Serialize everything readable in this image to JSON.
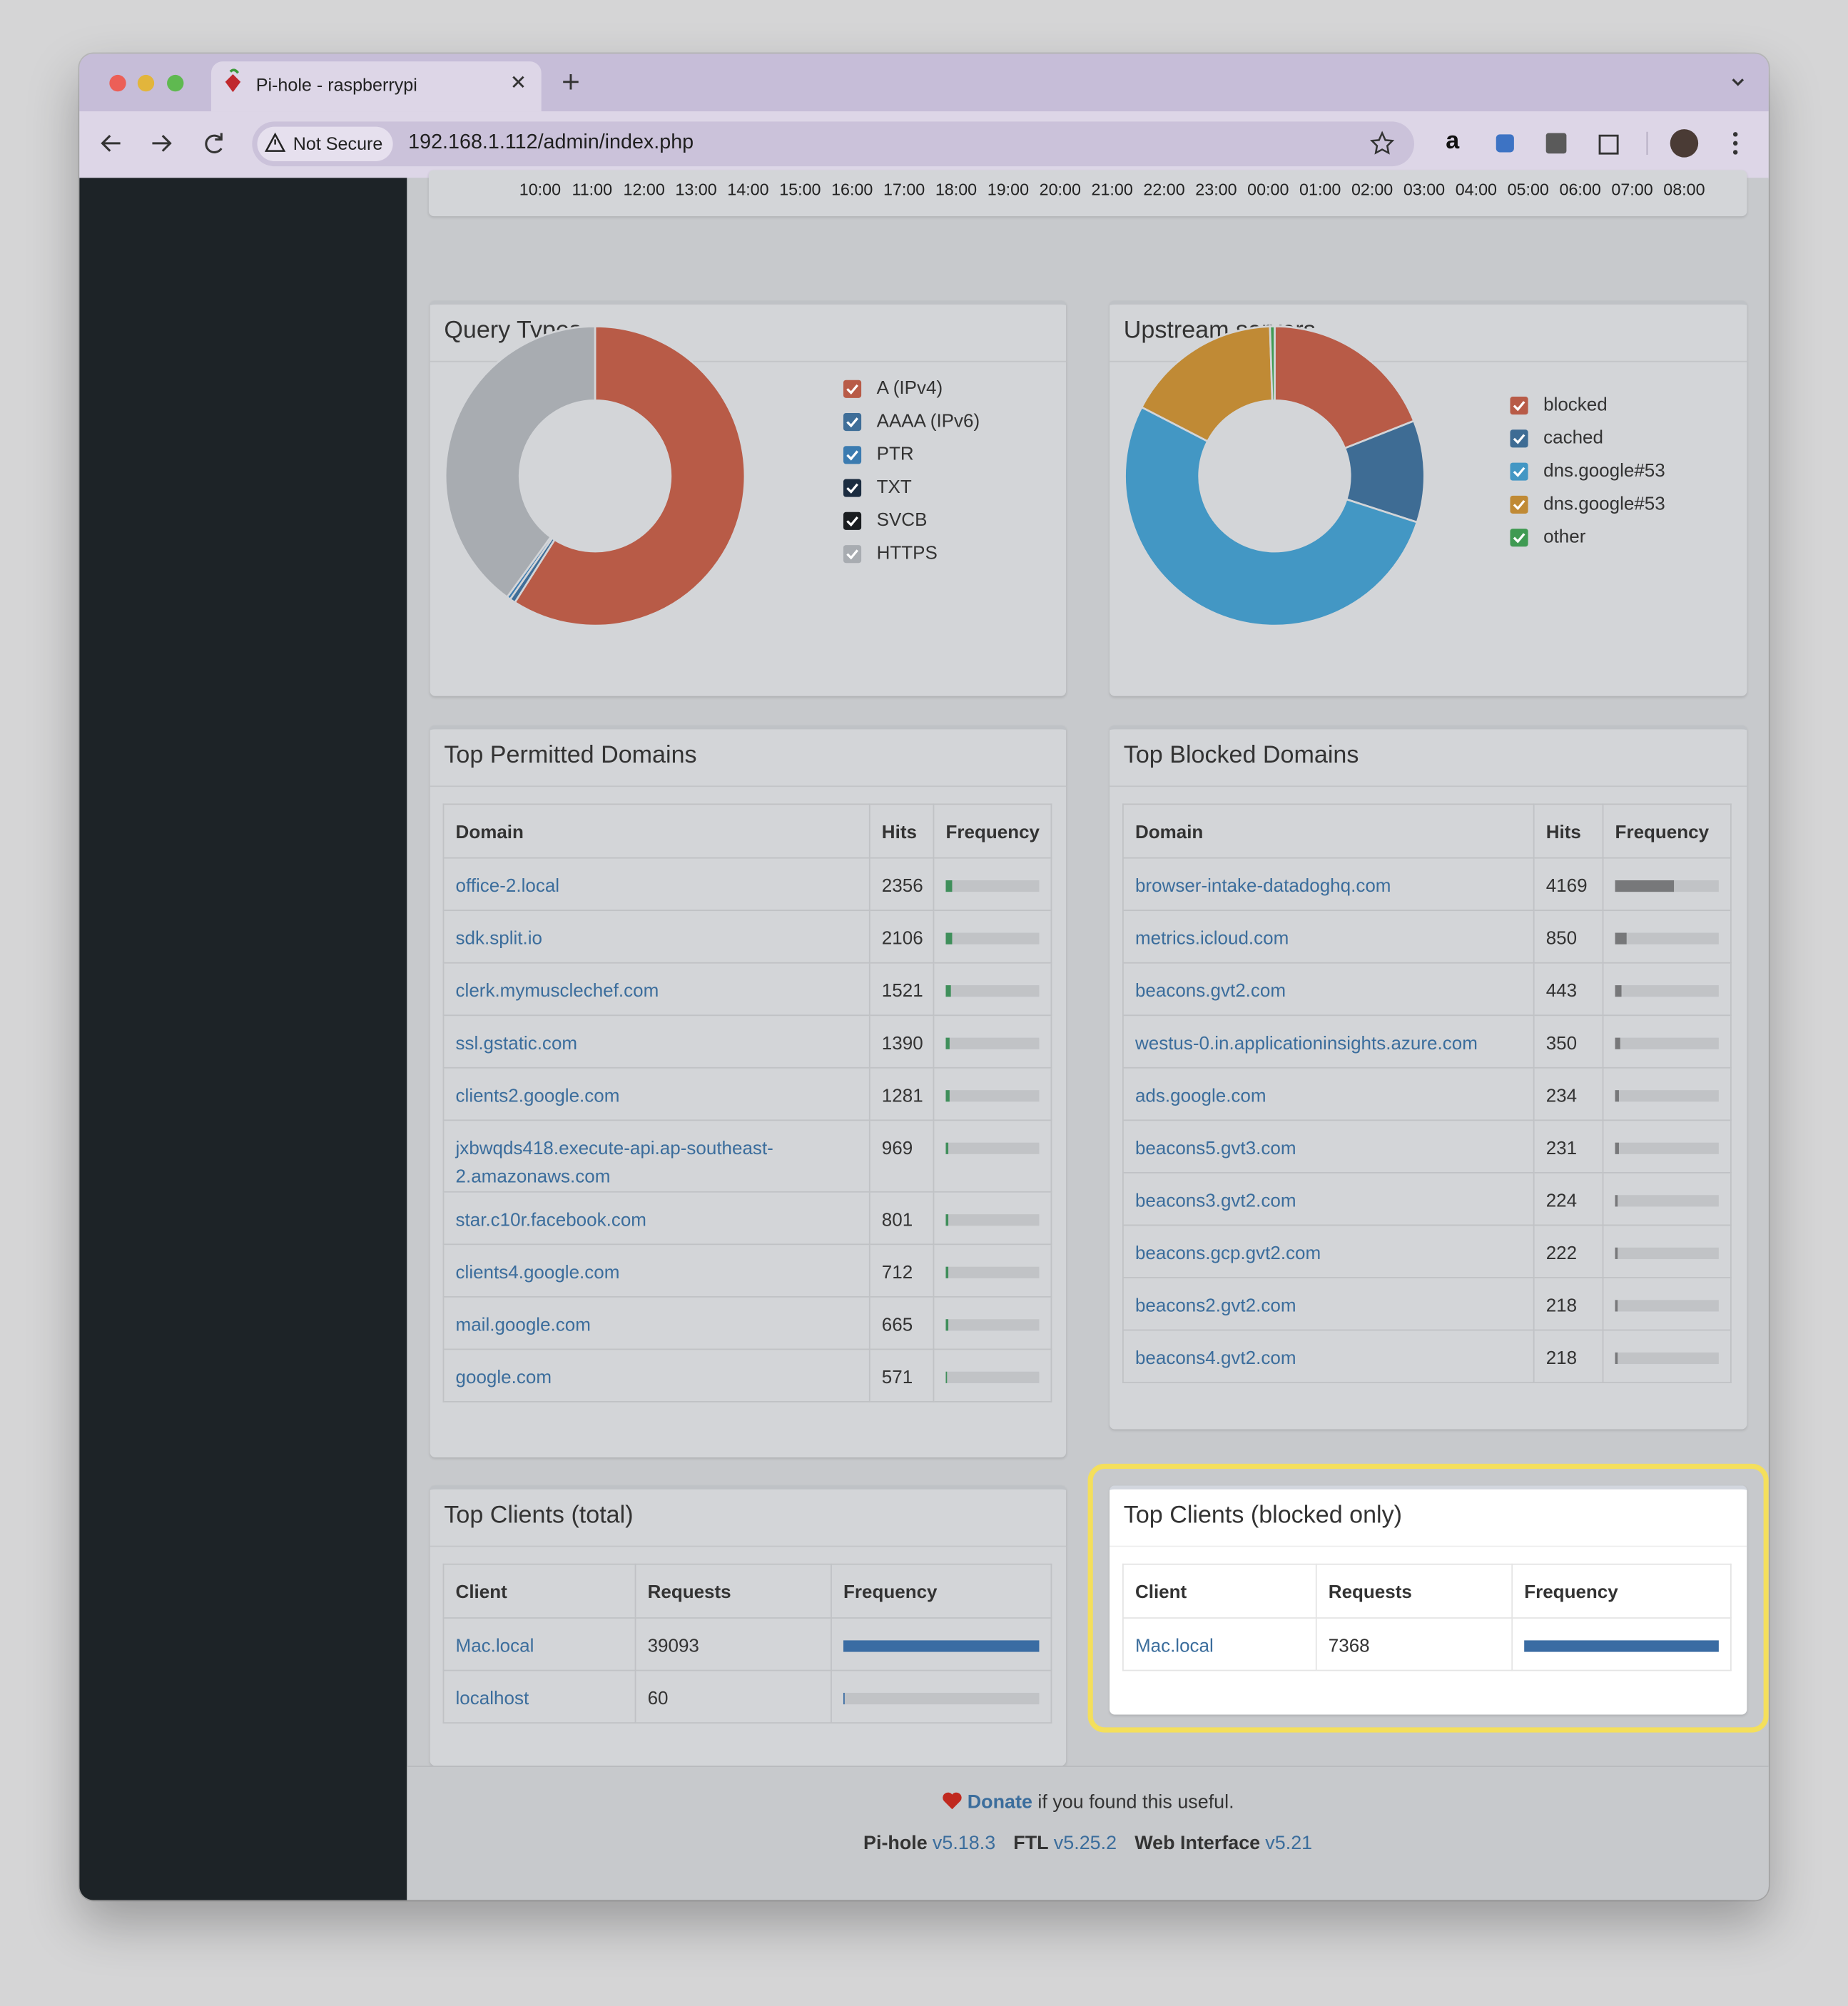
{
  "browser": {
    "tab_title": "Pi-hole - raspberrypi",
    "security": "Not Secure",
    "url": "192.168.1.112/admin/index.php"
  },
  "timeline": {
    "x_labels": [
      "10:00",
      "11:00",
      "12:00",
      "13:00",
      "14:00",
      "15:00",
      "16:00",
      "17:00",
      "18:00",
      "19:00",
      "20:00",
      "21:00",
      "22:00",
      "23:00",
      "00:00",
      "01:00",
      "02:00",
      "03:00",
      "04:00",
      "05:00",
      "06:00",
      "07:00",
      "08:00"
    ]
  },
  "query_types": {
    "title": "Query Types",
    "type": "donut",
    "series": [
      {
        "name": "A (IPv4)",
        "color": "#b85b47",
        "value": 59
      },
      {
        "name": "AAAA (IPv6)",
        "color": "#3f6e98",
        "value": 0.6
      },
      {
        "name": "PTR",
        "color": "#3b7bb0",
        "value": 0.4
      },
      {
        "name": "TXT",
        "color": "#1b2c40",
        "value": 0
      },
      {
        "name": "SVCB",
        "color": "#1a1d20",
        "value": 0
      },
      {
        "name": "HTTPS",
        "color": "#a8acb1",
        "value": 40
      }
    ]
  },
  "upstream_servers": {
    "title": "Upstream servers",
    "type": "donut",
    "series": [
      {
        "name": "blocked",
        "color": "#b85b47",
        "value": 19
      },
      {
        "name": "cached",
        "color": "#3e6c94",
        "value": 11
      },
      {
        "name": "dns.google#53",
        "color": "#4397c4",
        "value": 52.6
      },
      {
        "name": "dns.google#53",
        "color": "#c08a35",
        "value": 16.9
      },
      {
        "name": "other",
        "color": "#3f9a52",
        "value": 0.5
      }
    ]
  },
  "top_permitted": {
    "title": "Top Permitted Domains",
    "columns": [
      "Domain",
      "Hits",
      "Frequency"
    ],
    "bar_color": "#3f8f5b",
    "rows": [
      {
        "domain": "office-2.local",
        "hits": 2356,
        "frequency": 7.4
      },
      {
        "domain": "sdk.split.io",
        "hits": 2106,
        "frequency": 6.6
      },
      {
        "domain": "clerk.mymusclechef.com",
        "hits": 1521,
        "frequency": 4.8
      },
      {
        "domain": "ssl.gstatic.com",
        "hits": 1390,
        "frequency": 4.4
      },
      {
        "domain": "clients2.google.com",
        "hits": 1281,
        "frequency": 4.0
      },
      {
        "domain": "jxbwqds418.execute-api.ap-southeast-2.amazonaws.com",
        "hits": 969,
        "frequency": 3.1
      },
      {
        "domain": "star.c10r.facebook.com",
        "hits": 801,
        "frequency": 2.5
      },
      {
        "domain": "clients4.google.com",
        "hits": 712,
        "frequency": 2.2
      },
      {
        "domain": "mail.google.com",
        "hits": 665,
        "frequency": 2.1
      },
      {
        "domain": "google.com",
        "hits": 571,
        "frequency": 1.8
      }
    ]
  },
  "top_blocked": {
    "title": "Top Blocked Domains",
    "columns": [
      "Domain",
      "Hits",
      "Frequency"
    ],
    "bar_color": "#77787a",
    "rows": [
      {
        "domain": "browser-intake-datadoghq.com",
        "hits": 4169,
        "frequency": 56.6
      },
      {
        "domain": "metrics.icloud.com",
        "hits": 850,
        "frequency": 11.5
      },
      {
        "domain": "beacons.gvt2.com",
        "hits": 443,
        "frequency": 6.0
      },
      {
        "domain": "westus-0.in.applicationinsights.azure.com",
        "hits": 350,
        "frequency": 4.8
      },
      {
        "domain": "ads.google.com",
        "hits": 234,
        "frequency": 3.2
      },
      {
        "domain": "beacons5.gvt3.com",
        "hits": 231,
        "frequency": 3.1
      },
      {
        "domain": "beacons3.gvt2.com",
        "hits": 224,
        "frequency": 3.0
      },
      {
        "domain": "beacons.gcp.gvt2.com",
        "hits": 222,
        "frequency": 3.0
      },
      {
        "domain": "beacons2.gvt2.com",
        "hits": 218,
        "frequency": 3.0
      },
      {
        "domain": "beacons4.gvt2.com",
        "hits": 218,
        "frequency": 3.0
      }
    ]
  },
  "top_clients_total": {
    "title": "Top Clients (total)",
    "columns": [
      "Client",
      "Requests",
      "Frequency"
    ],
    "bar_color": "#3a6ca3",
    "rows": [
      {
        "client": "Mac.local",
        "requests": 39093,
        "frequency": 99.8
      },
      {
        "client": "localhost",
        "requests": 60,
        "frequency": 0.2
      }
    ]
  },
  "top_clients_blocked": {
    "title": "Top Clients (blocked only)",
    "columns": [
      "Client",
      "Requests",
      "Frequency"
    ],
    "bar_color": "#3a6ca3",
    "rows": [
      {
        "client": "Mac.local",
        "requests": 7368,
        "frequency": 100
      }
    ]
  },
  "footer": {
    "donate": "Donate",
    "donate_text": "if you found this useful.",
    "versions": [
      {
        "name": "Pi-hole",
        "version": "v5.18.3"
      },
      {
        "name": "FTL",
        "version": "v5.25.2"
      },
      {
        "name": "Web Interface",
        "version": "v5.21"
      }
    ]
  }
}
